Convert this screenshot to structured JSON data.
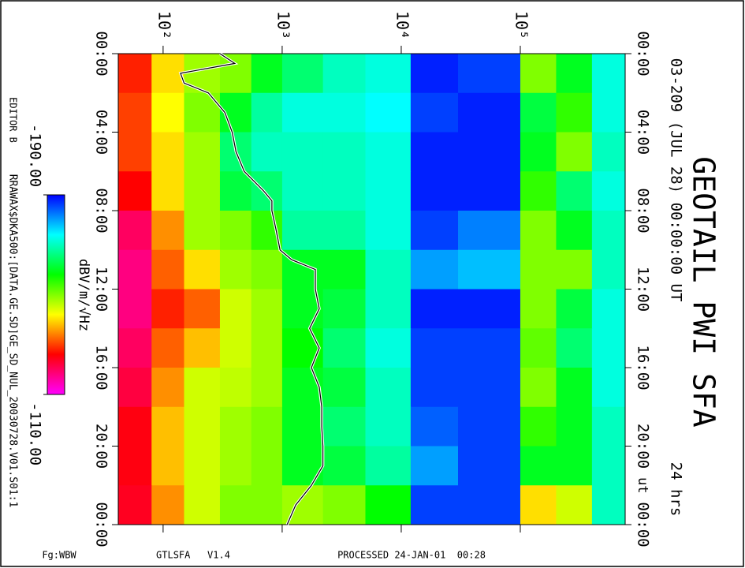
{
  "chart_data": {
    "type": "heatmap",
    "title": "GEOTAIL PWI SFA",
    "subtitle": "03-209 (JUL 28) 00:00:00 UT",
    "duration_label": "24 hrs",
    "time_unit_label": "ut",
    "editor": "EDITOR B",
    "file": "RRAWAX$DKA500:[DATA.GE.SD]GE_SD_NUL_20030728.V01.S01:1",
    "footer": {
      "plot_id": "Fg:WBW",
      "program": "GTLSFA   V1.4",
      "processed": "PROCESSED 24-JAN-01  00:28"
    },
    "colorbar": {
      "label": "dBV/m/√Hz",
      "lim": [
        -190,
        -110
      ],
      "ticks": [
        {
          "value": -190,
          "label": "-190.00"
        },
        {
          "value": -110,
          "label": "-110.00"
        }
      ]
    },
    "xscale": "log",
    "xlim": [
      42,
      760000
    ],
    "xticks": [
      {
        "value": 100,
        "label": "10²"
      },
      {
        "value": 1000,
        "label": "10³"
      },
      {
        "value": 10000,
        "label": "10⁴"
      },
      {
        "value": 100000,
        "label": "10⁵"
      }
    ],
    "ylim": [
      0,
      24
    ],
    "y_inverted": true,
    "yticks": [
      {
        "value": 0,
        "label": "00:00"
      },
      {
        "value": 4,
        "label": "04:00"
      },
      {
        "value": 8,
        "label": "08:00"
      },
      {
        "value": 12,
        "label": "12:00"
      },
      {
        "value": 16,
        "label": "16:00"
      },
      {
        "value": 20,
        "label": "20:00"
      },
      {
        "value": 24,
        "label": "00:00"
      }
    ],
    "time_unit_at": 22,
    "x_bins": [
      42,
      80,
      150,
      300,
      550,
      1000,
      2200,
      5000,
      12000,
      30000,
      100000,
      200000,
      400000,
      760000
    ],
    "y_bins": [
      0,
      2,
      4,
      6,
      8,
      10,
      12,
      14,
      16,
      18,
      20,
      22,
      24
    ],
    "z": [
      [
        -128,
        -140,
        -148,
        -150,
        -160,
        -165,
        -170,
        -172,
        -188,
        -186,
        -150,
        -160,
        -172
      ],
      [
        -130,
        -142,
        -150,
        -160,
        -168,
        -172,
        -172,
        -174,
        -186,
        -188,
        -162,
        -155,
        -172
      ],
      [
        -130,
        -140,
        -148,
        -165,
        -170,
        -170,
        -170,
        -172,
        -188,
        -188,
        -160,
        -150,
        -170
      ],
      [
        -126,
        -140,
        -148,
        -162,
        -165,
        -170,
        -170,
        -172,
        -188,
        -188,
        -155,
        -165,
        -172
      ],
      [
        -120,
        -135,
        -148,
        -150,
        -155,
        -168,
        -168,
        -172,
        -186,
        -182,
        -150,
        -160,
        -170
      ],
      [
        -118,
        -132,
        -140,
        -148,
        -150,
        -160,
        -160,
        -170,
        -180,
        -178,
        -150,
        -150,
        -170
      ],
      [
        -118,
        -128,
        -132,
        -145,
        -148,
        -160,
        -162,
        -170,
        -188,
        -188,
        -150,
        -162,
        -172
      ],
      [
        -120,
        -132,
        -138,
        -145,
        -148,
        -158,
        -165,
        -172,
        -186,
        -186,
        -152,
        -165,
        -172
      ],
      [
        -122,
        -135,
        -145,
        -146,
        -148,
        -160,
        -162,
        -170,
        -186,
        -186,
        -150,
        -160,
        -172
      ],
      [
        -125,
        -138,
        -145,
        -148,
        -150,
        -160,
        -165,
        -170,
        -184,
        -186,
        -155,
        -160,
        -170
      ],
      [
        -125,
        -138,
        -145,
        -148,
        -150,
        -160,
        -162,
        -168,
        -180,
        -186,
        -160,
        -160,
        -170
      ],
      [
        -124,
        -135,
        -145,
        -150,
        -150,
        -148,
        -150,
        -158,
        -186,
        -186,
        -140,
        -145,
        -170
      ]
    ],
    "trace": {
      "color": "#000000",
      "x": [
        0,
        0.5,
        1,
        1.5,
        2,
        3,
        4,
        5,
        6,
        7,
        7.5,
        8,
        9,
        10,
        10.5,
        11,
        12,
        13,
        14,
        15,
        16,
        17,
        18,
        19,
        20,
        21,
        22,
        23,
        24
      ],
      "values": [
        300,
        400,
        140,
        150,
        240,
        330,
        380,
        410,
        480,
        700,
        820,
        820,
        890,
        960,
        1200,
        1900,
        1900,
        2050,
        1700,
        2050,
        1760,
        2050,
        2150,
        2150,
        2200,
        2200,
        1760,
        1300,
        1100
      ]
    }
  }
}
